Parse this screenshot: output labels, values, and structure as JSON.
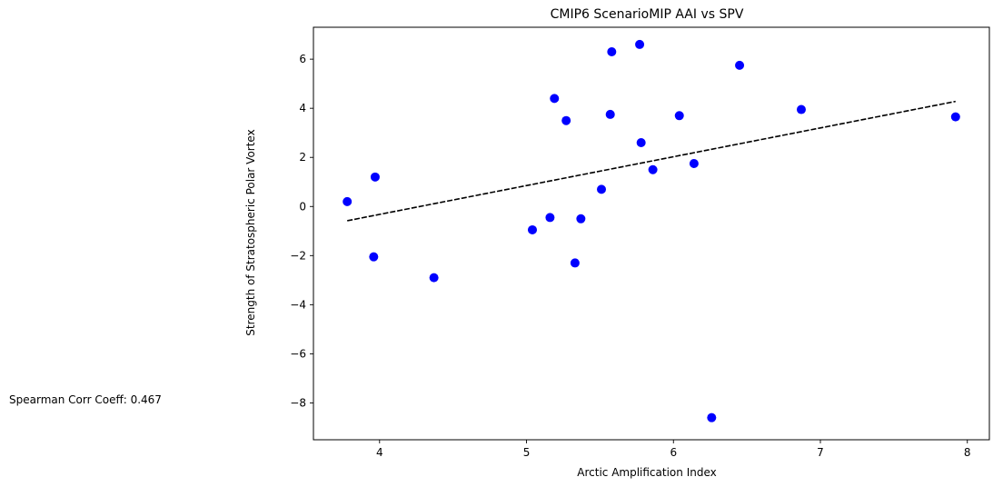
{
  "chart_data": {
    "type": "scatter",
    "title": "CMIP6 ScenarioMIP AAI vs SPV",
    "xlabel": "Arctic Amplification Index",
    "ylabel": "Strength of Stratospheric Polar Vortex",
    "xlim": [
      3.55,
      8.15
    ],
    "ylim": [
      -9.5,
      7.3
    ],
    "xticks": [
      4,
      5,
      6,
      7,
      8
    ],
    "yticks": [
      -8,
      -6,
      -4,
      -2,
      0,
      2,
      4,
      6
    ],
    "grid": false,
    "annotation": "Spearman Corr Coeff: 0.467",
    "series": [
      {
        "marker_color": "#0000ff",
        "x": [
          3.78,
          3.96,
          3.97,
          4.37,
          5.04,
          5.16,
          5.19,
          5.27,
          5.33,
          5.37,
          5.51,
          5.57,
          5.58,
          5.77,
          5.78,
          5.86,
          6.04,
          6.14,
          6.26,
          6.45,
          6.87,
          7.92
        ],
        "y": [
          0.2,
          -2.05,
          1.2,
          -2.9,
          -0.95,
          -0.45,
          4.4,
          3.5,
          -2.3,
          -0.5,
          0.7,
          3.75,
          6.3,
          6.6,
          2.6,
          1.5,
          3.7,
          1.75,
          -8.6,
          5.75,
          3.95,
          3.65
        ]
      }
    ],
    "fit_line": {
      "color": "#000000",
      "style": "dashed",
      "x": [
        3.78,
        7.92
      ],
      "y": [
        -0.58,
        4.28
      ]
    }
  }
}
